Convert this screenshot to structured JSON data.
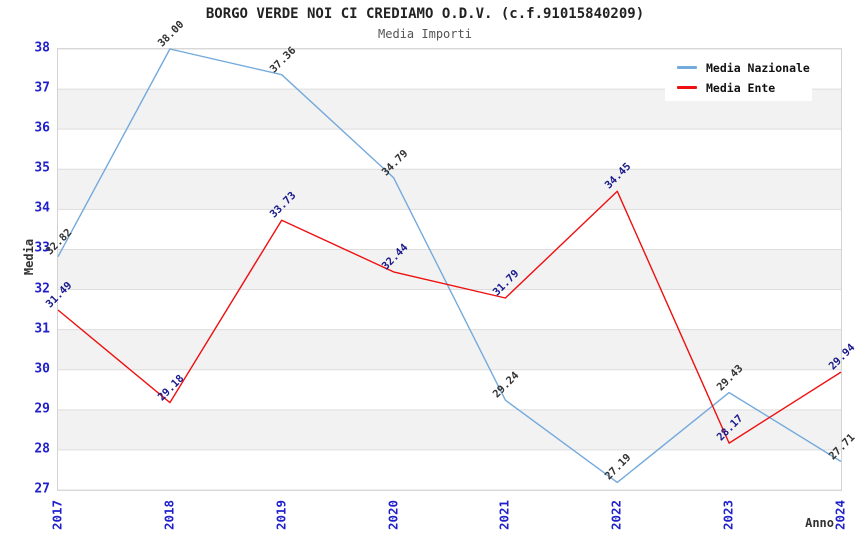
{
  "chart_data": {
    "type": "line",
    "title": "BORGO VERDE NOI CI CREDIAMO O.D.V. (c.f.91015840209)",
    "subtitle": "Media Importi",
    "xlabel": "Anno",
    "ylabel": "Media",
    "x": [
      "2017",
      "2018",
      "2019",
      "2020",
      "2021",
      "2022",
      "2023",
      "2024"
    ],
    "ylim": [
      27,
      38
    ],
    "ytick_step": 1,
    "grid": "horizontal-alternating-bands",
    "legend_position": "top-right",
    "series": [
      {
        "name": "Media Nazionale",
        "color": "#74AADC",
        "label_color": "#333333",
        "values": [
          32.82,
          38.0,
          37.36,
          34.79,
          29.24,
          27.19,
          29.43,
          27.71
        ]
      },
      {
        "name": "Media Ente",
        "color": "#EE1010",
        "label_color": "#1A1A8C",
        "values": [
          31.49,
          29.18,
          33.73,
          32.44,
          31.79,
          34.45,
          28.17,
          29.94
        ]
      }
    ],
    "colors": {
      "tick_label": "#2020CC",
      "axis_title": "#333333",
      "band_fill": "#F2F2F2",
      "grid_line": "#DDDDDD",
      "plot_border": "#D3D3D3",
      "background": "#FFFFFF"
    }
  }
}
